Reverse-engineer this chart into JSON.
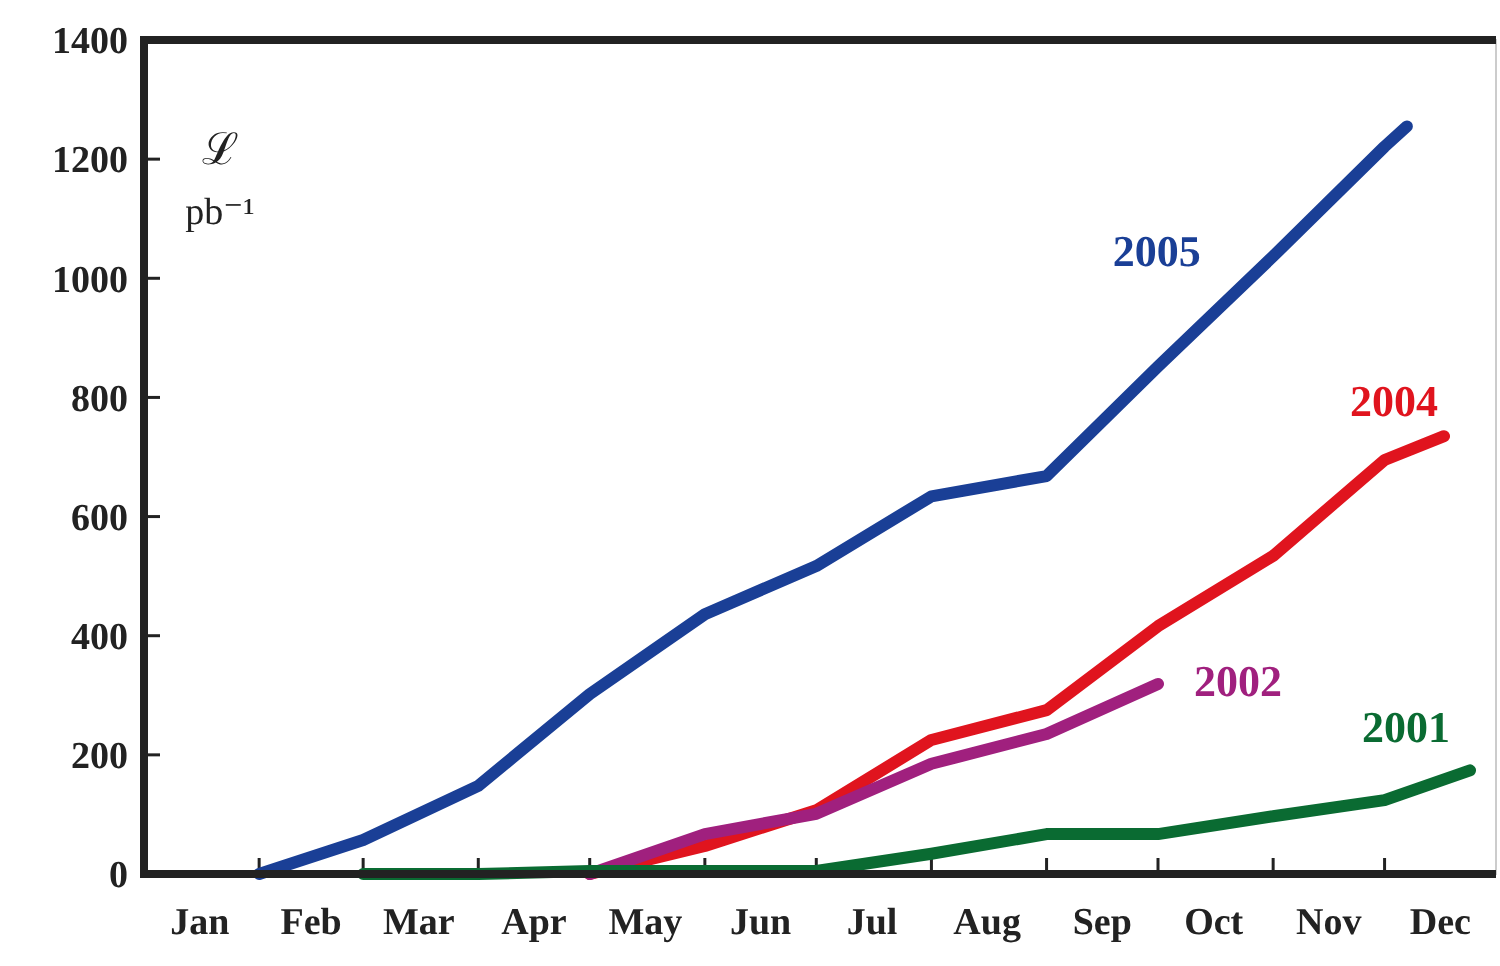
{
  "chart_data": {
    "type": "line",
    "ylabel": "ℒ pb⁻¹",
    "xlim": [
      "--01-01",
      "--12-31"
    ],
    "xticks": [
      {
        "value": "--01-16",
        "label": "Jan"
      },
      {
        "value": "--02-15",
        "label": "Feb"
      },
      {
        "value": "--03-16",
        "label": "Mar"
      },
      {
        "value": "--04-16",
        "label": "Apr"
      },
      {
        "value": "--05-16",
        "label": "May"
      },
      {
        "value": "--06-16",
        "label": "Jun"
      },
      {
        "value": "--07-16",
        "label": "Jul"
      },
      {
        "value": "--08-16",
        "label": "Aug"
      },
      {
        "value": "--09-16",
        "label": "Sep"
      },
      {
        "value": "--10-16",
        "label": "Oct"
      },
      {
        "value": "--11-16",
        "label": "Nov"
      },
      {
        "value": "--12-16",
        "label": "Dec"
      }
    ],
    "ylim": [
      0,
      1400
    ],
    "yticks": [
      0,
      200,
      400,
      600,
      800,
      1000,
      1200,
      1400
    ],
    "grid": false,
    "legend": false,
    "marker": "none",
    "line_style": "solid",
    "series": [
      {
        "name": "2005",
        "color": "#1a3f96",
        "x": [
          "--02-01",
          "--03-01",
          "--04-01",
          "--05-01",
          "--06-01",
          "--07-01",
          "--08-01",
          "--09-01",
          "--10-01",
          "--11-01",
          "--12-01",
          "--12-07"
        ],
        "values": [
          0,
          57,
          148,
          302,
          436,
          517,
          634,
          668,
          852,
          1037,
          1221,
          1255
        ]
      },
      {
        "name": "2004",
        "color": "#e0141e",
        "x": [
          "--05-01",
          "--06-01",
          "--07-01",
          "--08-01",
          "--09-01",
          "--10-01",
          "--11-01",
          "--12-01",
          "--12-17"
        ],
        "values": [
          0,
          47,
          107,
          225,
          275,
          416,
          534,
          695,
          735
        ]
      },
      {
        "name": "2002",
        "color": "#a0207e",
        "x": [
          "--05-01",
          "--06-01",
          "--07-01",
          "--08-01",
          "--09-01",
          "--10-01"
        ],
        "values": [
          0,
          67,
          101,
          185,
          235,
          319
        ]
      },
      {
        "name": "2001",
        "color": "#0a6b32",
        "x": [
          "--03-01",
          "--04-01",
          "--05-01",
          "--06-01",
          "--07-01",
          "--08-01",
          "--09-01",
          "--10-01",
          "--11-01",
          "--12-01",
          "--12-24"
        ],
        "values": [
          0,
          0,
          5,
          5,
          5,
          34,
          67,
          67,
          97,
          124,
          174
        ]
      }
    ]
  }
}
